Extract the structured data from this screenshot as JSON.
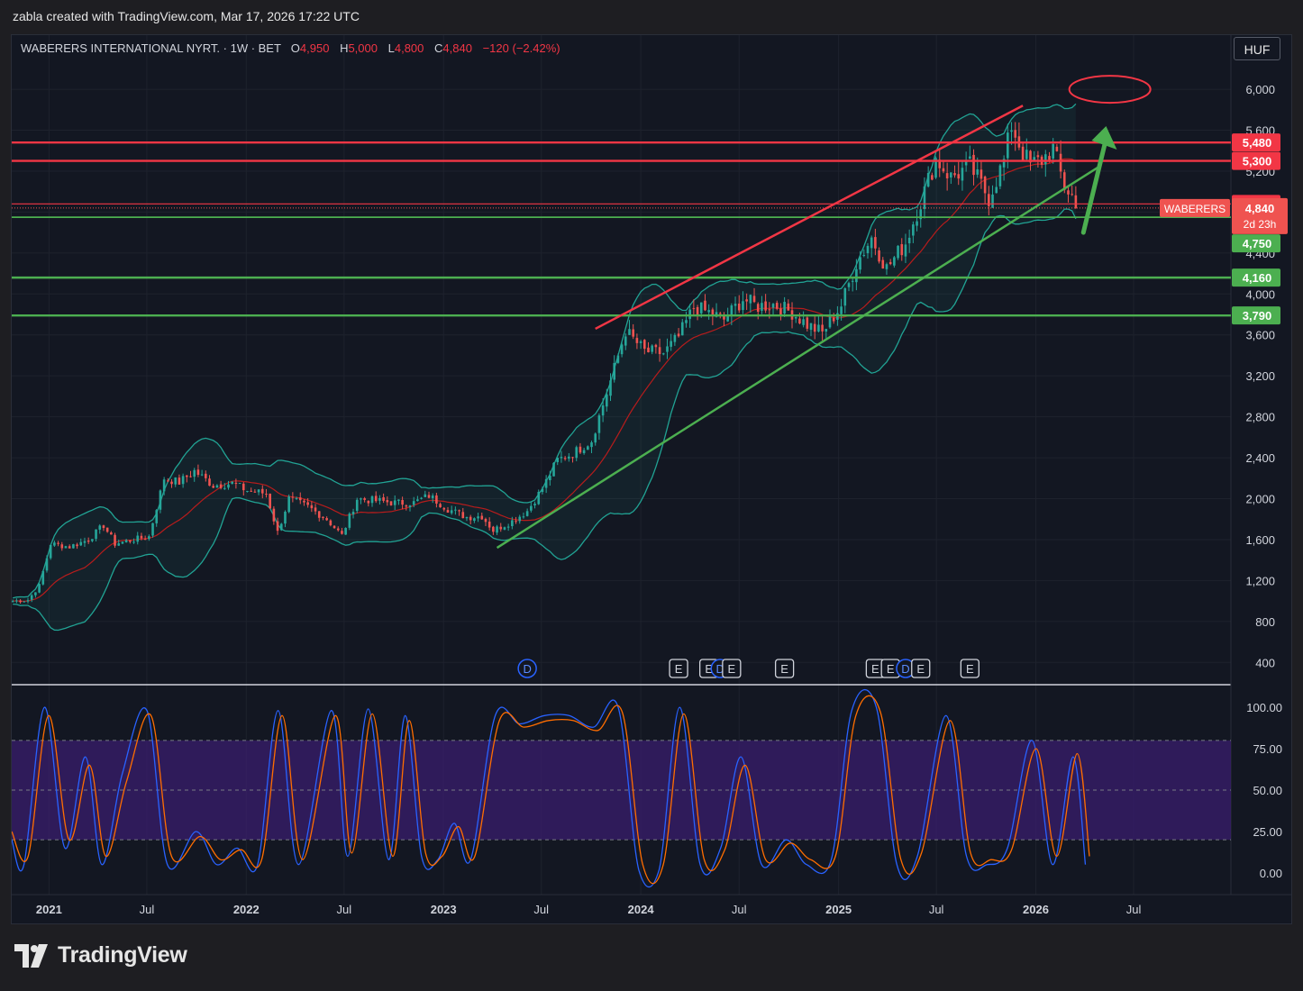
{
  "header": {
    "created_text": "zabla created with TradingView.com, Mar 17, 2026 17:22 UTC"
  },
  "legend": {
    "symbol": "WABERERS INTERNATIONAL NYRT. · 1W · BET",
    "open_label": "O",
    "open_value": "4,950",
    "high_label": "H",
    "high_value": "5,000",
    "low_label": "L",
    "low_value": "4,800",
    "close_label": "C",
    "close_value": "4,840",
    "change": "−120 (−2.42%)"
  },
  "currency_button": "HUF",
  "branding": {
    "logo_text": "TradingView"
  },
  "colors": {
    "up": "#26a69a",
    "down": "#ef5350",
    "resistance": "#f23645",
    "support": "#4caf50",
    "bands": "#21a394",
    "basis": "#b71c1c",
    "stoch_k": "#2962ff",
    "stoch_d": "#ff6d00",
    "stoch_band": "#7e57c2",
    "channel_upper": "#f23645",
    "channel_lower": "#4caf50",
    "target_arrow": "#4caf50",
    "target_ellipse": "#f23645"
  },
  "chart_data": [
    {
      "type": "candlestick",
      "title": "WABERERS INTERNATIONAL NYRT.",
      "interval": "1W",
      "exchange": "BET",
      "currency": "HUF",
      "y_ticks": [
        400,
        800,
        1200,
        1600,
        2000,
        2400,
        2800,
        3200,
        3600,
        4000,
        4400,
        4800,
        5200,
        5600,
        6000
      ],
      "y_tick_labels": [
        "400",
        "800",
        "1,200",
        "1,600",
        "2,000",
        "2,400",
        "2,800",
        "3,200",
        "3,600",
        "4,000",
        "4,400",
        "4,800",
        "5,200",
        "5,600",
        "6,000"
      ],
      "ylim": [
        200,
        6300
      ],
      "x_ticks": [
        {
          "date": "2021-01-01",
          "label": "2021",
          "bold": true
        },
        {
          "date": "2021-07-01",
          "label": "Jul",
          "bold": false
        },
        {
          "date": "2022-01-01",
          "label": "2022",
          "bold": true
        },
        {
          "date": "2022-07-01",
          "label": "Jul",
          "bold": false
        },
        {
          "date": "2023-01-01",
          "label": "2023",
          "bold": true
        },
        {
          "date": "2023-07-01",
          "label": "Jul",
          "bold": false
        },
        {
          "date": "2024-01-01",
          "label": "2024",
          "bold": true
        },
        {
          "date": "2024-07-01",
          "label": "Jul",
          "bold": false
        },
        {
          "date": "2025-01-01",
          "label": "2025",
          "bold": true
        },
        {
          "date": "2025-07-01",
          "label": "Jul",
          "bold": false
        },
        {
          "date": "2026-01-01",
          "label": "2026",
          "bold": true
        },
        {
          "date": "2026-07-01",
          "label": "Jul",
          "bold": false
        }
      ],
      "xlim": [
        "2020-10-24",
        "2026-12-28"
      ],
      "close_series": [
        [
          "2020-10-26",
          1000
        ],
        [
          "2020-11-23",
          1010
        ],
        [
          "2020-12-14",
          1150
        ],
        [
          "2021-01-04",
          1560
        ],
        [
          "2021-02-08",
          1530
        ],
        [
          "2021-03-15",
          1600
        ],
        [
          "2021-04-12",
          1740
        ],
        [
          "2021-05-03",
          1560
        ],
        [
          "2021-06-07",
          1600
        ],
        [
          "2021-07-05",
          1630
        ],
        [
          "2021-08-02",
          2200
        ],
        [
          "2021-08-30",
          2160
        ],
        [
          "2021-09-27",
          2270
        ],
        [
          "2021-11-01",
          2130
        ],
        [
          "2021-12-06",
          2150
        ],
        [
          "2022-01-03",
          2080
        ],
        [
          "2022-02-07",
          2050
        ],
        [
          "2022-02-28",
          1670
        ],
        [
          "2022-03-21",
          2000
        ],
        [
          "2022-04-25",
          1920
        ],
        [
          "2022-05-30",
          1800
        ],
        [
          "2022-06-27",
          1640
        ],
        [
          "2022-07-25",
          2000
        ],
        [
          "2022-08-29",
          1980
        ],
        [
          "2022-10-03",
          1960
        ],
        [
          "2022-11-07",
          1960
        ],
        [
          "2022-12-05",
          2030
        ],
        [
          "2023-01-09",
          1900
        ],
        [
          "2023-02-13",
          1820
        ],
        [
          "2023-03-13",
          1830
        ],
        [
          "2023-04-03",
          1690
        ],
        [
          "2023-05-08",
          1780
        ],
        [
          "2023-06-05",
          1880
        ],
        [
          "2023-07-03",
          2100
        ],
        [
          "2023-07-31",
          2380
        ],
        [
          "2023-08-28",
          2440
        ],
        [
          "2023-10-02",
          2570
        ],
        [
          "2023-11-06",
          3150
        ],
        [
          "2023-12-04",
          3640
        ],
        [
          "2024-01-08",
          3440
        ],
        [
          "2024-02-12",
          3420
        ],
        [
          "2024-03-11",
          3580
        ],
        [
          "2024-04-08",
          3870
        ],
        [
          "2024-05-06",
          3820
        ],
        [
          "2024-06-03",
          3750
        ],
        [
          "2024-07-08",
          3950
        ],
        [
          "2024-08-05",
          3880
        ],
        [
          "2024-09-02",
          3900
        ],
        [
          "2024-10-07",
          3820
        ],
        [
          "2024-11-04",
          3700
        ],
        [
          "2024-12-02",
          3620
        ],
        [
          "2025-01-06",
          3890
        ],
        [
          "2025-02-03",
          4300
        ],
        [
          "2025-03-03",
          4550
        ],
        [
          "2025-03-31",
          4250
        ],
        [
          "2025-05-05",
          4500
        ],
        [
          "2025-06-02",
          4900
        ],
        [
          "2025-06-30",
          5320
        ],
        [
          "2025-07-28",
          5140
        ],
        [
          "2025-09-01",
          5250
        ],
        [
          "2025-10-06",
          4940
        ],
        [
          "2025-11-03",
          5300
        ],
        [
          "2025-11-17",
          5650
        ],
        [
          "2025-12-08",
          5380
        ],
        [
          "2025-12-22",
          5260
        ],
        [
          "2026-01-12",
          5310
        ],
        [
          "2026-02-02",
          5420
        ],
        [
          "2026-02-23",
          5050
        ],
        [
          "2026-03-09",
          4960
        ],
        [
          "2026-03-16",
          4840
        ]
      ],
      "price_levels": [
        {
          "value": 5480,
          "label": "5,480",
          "role": "resistance"
        },
        {
          "value": 5300,
          "label": "5,300",
          "role": "resistance"
        },
        {
          "value": 4880,
          "label": "4,880",
          "role": "resistance"
        },
        {
          "value": 4750,
          "label": "4,750",
          "role": "support"
        },
        {
          "value": 4160,
          "label": "4,160",
          "role": "support"
        },
        {
          "value": 3790,
          "label": "3,790",
          "role": "support"
        }
      ],
      "last_price": {
        "value": 4840,
        "label": "4,840",
        "countdown": "2d 23h",
        "ticker": "WABERERS"
      },
      "channel_upper": [
        [
          "2023-10-09",
          3660
        ],
        [
          "2025-12-08",
          5840
        ]
      ],
      "channel_lower": [
        [
          "2023-04-10",
          1520
        ],
        [
          "2026-04-27",
          5240
        ]
      ],
      "target_arrow": [
        [
          "2026-03-30",
          4600
        ],
        [
          "2026-05-11",
          5640
        ]
      ],
      "target_zone_center": [
        "2026-05-18",
        6000
      ],
      "event_markers": [
        {
          "date": "2023-06-05",
          "label": "D"
        },
        {
          "date": "2024-03-11",
          "label": "E"
        },
        {
          "date": "2024-05-06",
          "label": "E"
        },
        {
          "date": "2024-05-27",
          "label": "D"
        },
        {
          "date": "2024-06-17",
          "label": "E"
        },
        {
          "date": "2024-09-23",
          "label": "E"
        },
        {
          "date": "2025-03-10",
          "label": "E"
        },
        {
          "date": "2025-04-07",
          "label": "E"
        },
        {
          "date": "2025-05-05",
          "label": "D"
        },
        {
          "date": "2025-06-02",
          "label": "E"
        },
        {
          "date": "2025-09-01",
          "label": "E"
        }
      ],
      "indicators": [
        "Bollinger Bands",
        "Moving Average"
      ]
    },
    {
      "type": "line",
      "indicator": "Stochastic",
      "y_ticks": [
        0,
        25,
        50,
        75,
        100
      ],
      "y_tick_labels": [
        "0.00",
        "25.00",
        "50.00",
        "75.00",
        "100.00"
      ],
      "ylim": [
        -12,
        112
      ],
      "band": [
        20,
        80
      ],
      "series": [
        {
          "role": "k",
          "values": [
            [
              0,
              20
            ],
            [
              3,
              5
            ],
            [
              8,
              100
            ],
            [
              13,
              15
            ],
            [
              18,
              70
            ],
            [
              22,
              5
            ],
            [
              27,
              60
            ],
            [
              33,
              98
            ],
            [
              38,
              5
            ],
            [
              45,
              25
            ],
            [
              50,
              5
            ],
            [
              55,
              15
            ],
            [
              60,
              5
            ],
            [
              65,
              98
            ],
            [
              70,
              5
            ],
            [
              78,
              98
            ],
            [
              82,
              10
            ],
            [
              87,
              99
            ],
            [
              92,
              8
            ],
            [
              96,
              95
            ],
            [
              100,
              10
            ],
            [
              104,
              8
            ],
            [
              108,
              30
            ],
            [
              112,
              8
            ],
            [
              118,
              95
            ],
            [
              124,
              90
            ],
            [
              130,
              95
            ],
            [
              136,
              95
            ],
            [
              142,
              88
            ],
            [
              148,
              100
            ],
            [
              153,
              2
            ],
            [
              158,
              2
            ],
            [
              163,
              100
            ],
            [
              168,
              5
            ],
            [
              173,
              15
            ],
            [
              178,
              70
            ],
            [
              183,
              5
            ],
            [
              189,
              20
            ],
            [
              194,
              5
            ],
            [
              200,
              8
            ],
            [
              205,
              98
            ],
            [
              211,
              100
            ],
            [
              216,
              5
            ],
            [
              221,
              10
            ],
            [
              228,
              95
            ],
            [
              233,
              10
            ],
            [
              238,
              5
            ],
            [
              243,
              15
            ],
            [
              249,
              80
            ],
            [
              254,
              5
            ],
            [
              259,
              70
            ],
            [
              262,
              5
            ]
          ]
        },
        {
          "role": "d",
          "values": [
            [
              0,
              25
            ],
            [
              4,
              10
            ],
            [
              9,
              95
            ],
            [
              14,
              20
            ],
            [
              19,
              65
            ],
            [
              23,
              10
            ],
            [
              28,
              55
            ],
            [
              34,
              95
            ],
            [
              39,
              10
            ],
            [
              46,
              22
            ],
            [
              51,
              8
            ],
            [
              56,
              14
            ],
            [
              61,
              8
            ],
            [
              66,
              95
            ],
            [
              71,
              8
            ],
            [
              79,
              95
            ],
            [
              83,
              12
            ],
            [
              88,
              96
            ],
            [
              93,
              10
            ],
            [
              97,
              92
            ],
            [
              101,
              12
            ],
            [
              105,
              10
            ],
            [
              109,
              28
            ],
            [
              113,
              10
            ],
            [
              119,
              92
            ],
            [
              125,
              88
            ],
            [
              131,
              92
            ],
            [
              137,
              92
            ],
            [
              143,
              86
            ],
            [
              149,
              97
            ],
            [
              154,
              5
            ],
            [
              159,
              5
            ],
            [
              164,
              96
            ],
            [
              169,
              8
            ],
            [
              174,
              14
            ],
            [
              179,
              65
            ],
            [
              184,
              8
            ],
            [
              190,
              18
            ],
            [
              195,
              8
            ],
            [
              201,
              10
            ],
            [
              206,
              95
            ],
            [
              212,
              97
            ],
            [
              217,
              8
            ],
            [
              222,
              12
            ],
            [
              229,
              92
            ],
            [
              234,
              12
            ],
            [
              239,
              8
            ],
            [
              244,
              14
            ],
            [
              250,
              75
            ],
            [
              255,
              10
            ],
            [
              260,
              72
            ],
            [
              263,
              10
            ]
          ]
        }
      ]
    }
  ]
}
